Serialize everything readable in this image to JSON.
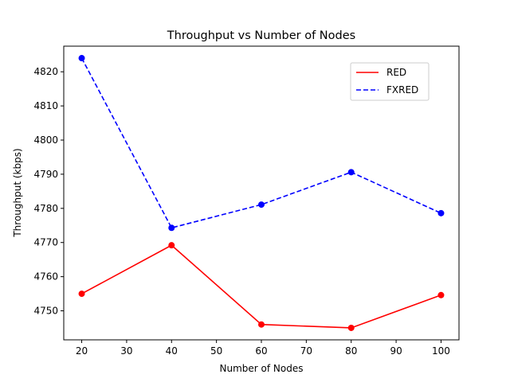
{
  "chart_data": {
    "type": "line",
    "title": "Throughput vs Number of Nodes",
    "xlabel": "Number of Nodes",
    "ylabel": "Throughput (kbps)",
    "x": [
      20,
      40,
      60,
      80,
      100
    ],
    "xlim": [
      16,
      104
    ],
    "ylim": [
      4741.5,
      4827.5
    ],
    "xticks": [
      20,
      30,
      40,
      50,
      60,
      70,
      80,
      90,
      100
    ],
    "yticks": [
      4750,
      4760,
      4770,
      4780,
      4790,
      4800,
      4810,
      4820
    ],
    "grid": false,
    "legend_position": "upper-right",
    "series": [
      {
        "name": "RED",
        "color": "#ff0000",
        "line_style": "solid",
        "marker": "circle",
        "values": [
          4755.0,
          4769.2,
          4746.0,
          4745.0,
          4754.6
        ]
      },
      {
        "name": "FXRED",
        "color": "#0000ff",
        "line_style": "dashed",
        "marker": "circle",
        "values": [
          4824.0,
          4774.3,
          4781.1,
          4790.6,
          4778.6
        ]
      }
    ]
  }
}
